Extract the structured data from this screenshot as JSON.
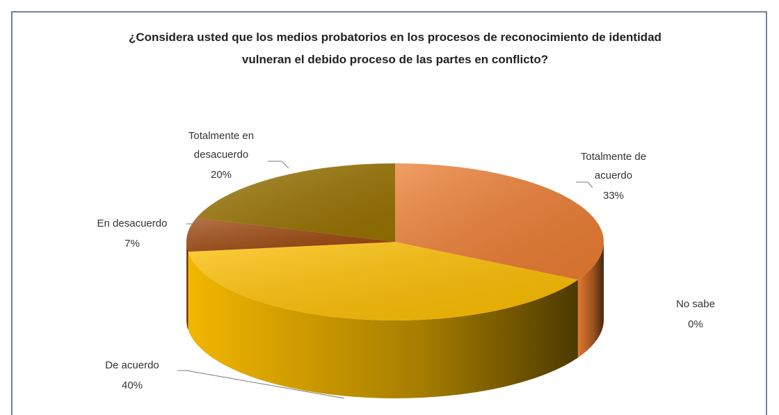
{
  "chart_data": {
    "type": "pie",
    "title": "¿Considera usted que los medios probatorios en los procesos de reconocimiento de identidad vulneran el debido proceso de las partes en conflicto?",
    "categories": [
      "Totalmente de acuerdo",
      "No sabe",
      "De acuerdo",
      "En desacuerdo",
      "Totalmente en desacuerdo"
    ],
    "values": [
      33,
      0,
      40,
      7,
      20
    ],
    "value_labels": [
      "33%",
      "0%",
      "40%",
      "7%",
      "20%"
    ],
    "colors": [
      "#ed7d31",
      "#a5a5a5",
      "#ffc000",
      "#9e480e",
      "#997300"
    ]
  }
}
